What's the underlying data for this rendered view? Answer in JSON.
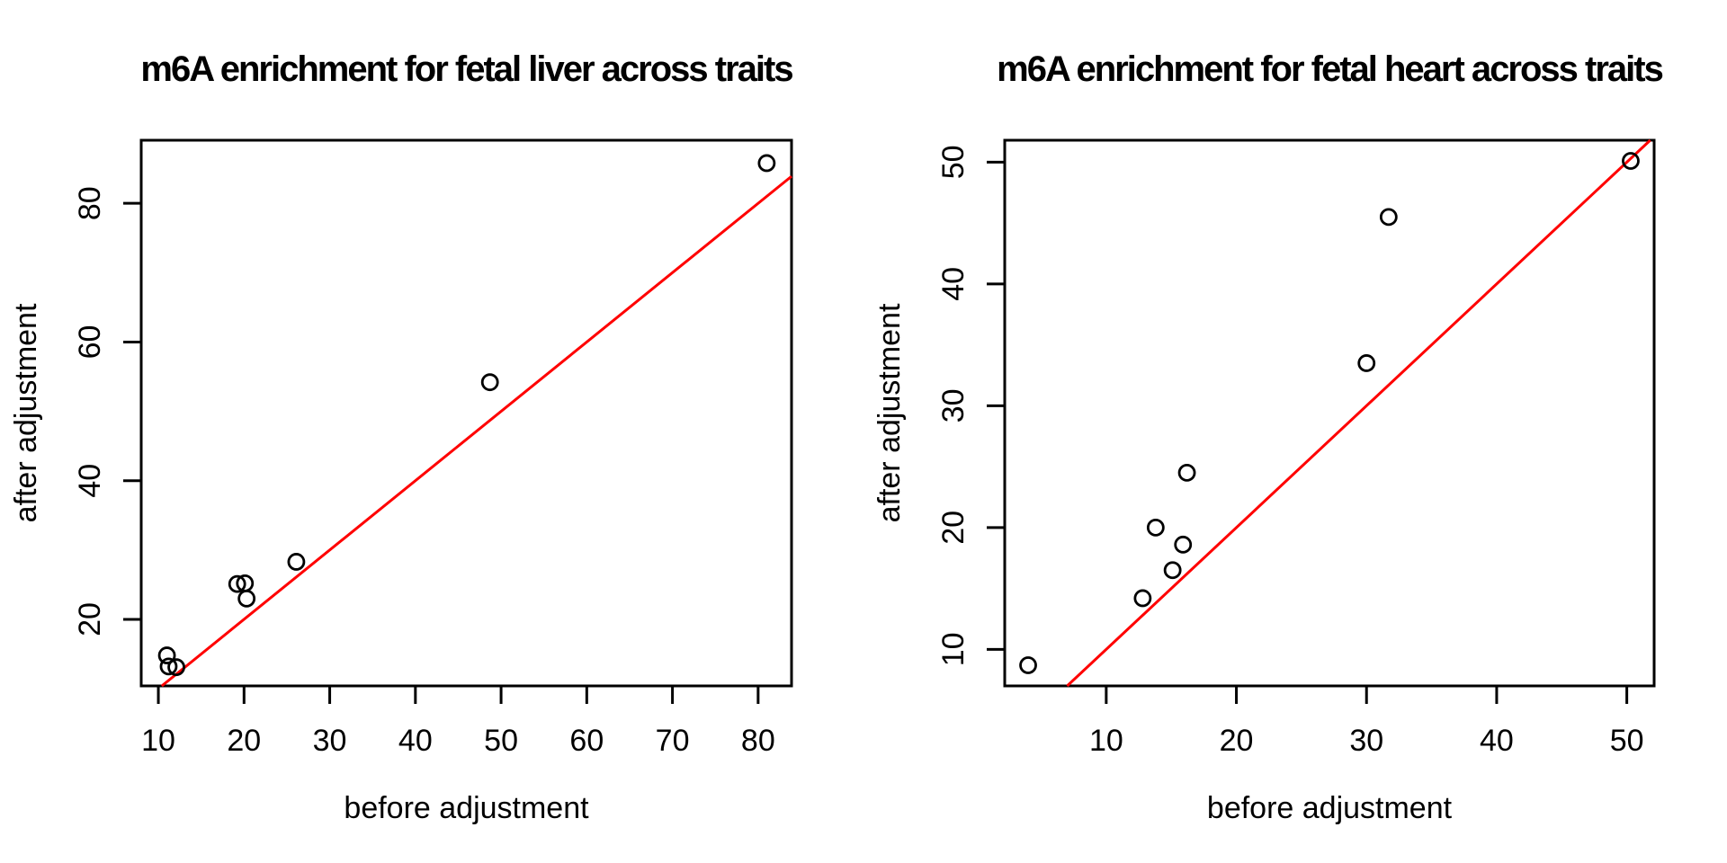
{
  "figure": {
    "background_color": "#ffffff",
    "foreground_color": "#000000"
  },
  "chart_data": [
    {
      "type": "scatter",
      "title": "m6A enrichment for fetal liver across traits",
      "xlabel": "before adjustment",
      "ylabel": "after adjustment",
      "xlim": [
        8.0,
        83.9
      ],
      "ylim": [
        10.4,
        89.1
      ],
      "xticks": [
        10,
        20,
        30,
        40,
        50,
        60,
        70,
        80
      ],
      "yticks": [
        20,
        40,
        60,
        80
      ],
      "grid": false,
      "legend": null,
      "marker": {
        "shape": "open-circle",
        "color": "#000000"
      },
      "reference_line": {
        "type": "identity",
        "slope": 1,
        "intercept": 0,
        "color": "#ff0000"
      },
      "points": [
        [
          11.0,
          14.8
        ],
        [
          11.2,
          13.2
        ],
        [
          12.1,
          13.1
        ],
        [
          19.2,
          25.1
        ],
        [
          20.1,
          25.2
        ],
        [
          20.3,
          23.0
        ],
        [
          26.1,
          28.3
        ],
        [
          48.7,
          54.2
        ],
        [
          81.0,
          85.8
        ]
      ]
    },
    {
      "type": "scatter",
      "title": "m6A enrichment for fetal heart across traits",
      "xlabel": "before adjustment",
      "ylabel": "after adjustment",
      "xlim": [
        2.2,
        52.1
      ],
      "ylim": [
        7.0,
        51.8
      ],
      "xticks": [
        10,
        20,
        30,
        40,
        50
      ],
      "yticks": [
        10,
        20,
        30,
        40,
        50
      ],
      "grid": false,
      "legend": null,
      "marker": {
        "shape": "open-circle",
        "color": "#000000"
      },
      "reference_line": {
        "type": "identity",
        "slope": 1,
        "intercept": 0,
        "color": "#ff0000"
      },
      "points": [
        [
          4.0,
          8.7
        ],
        [
          12.8,
          14.2
        ],
        [
          13.8,
          20.0
        ],
        [
          15.1,
          16.5
        ],
        [
          15.9,
          18.6
        ],
        [
          16.2,
          24.5
        ],
        [
          30.0,
          33.5
        ],
        [
          31.7,
          45.5
        ],
        [
          50.3,
          50.1
        ]
      ]
    }
  ]
}
